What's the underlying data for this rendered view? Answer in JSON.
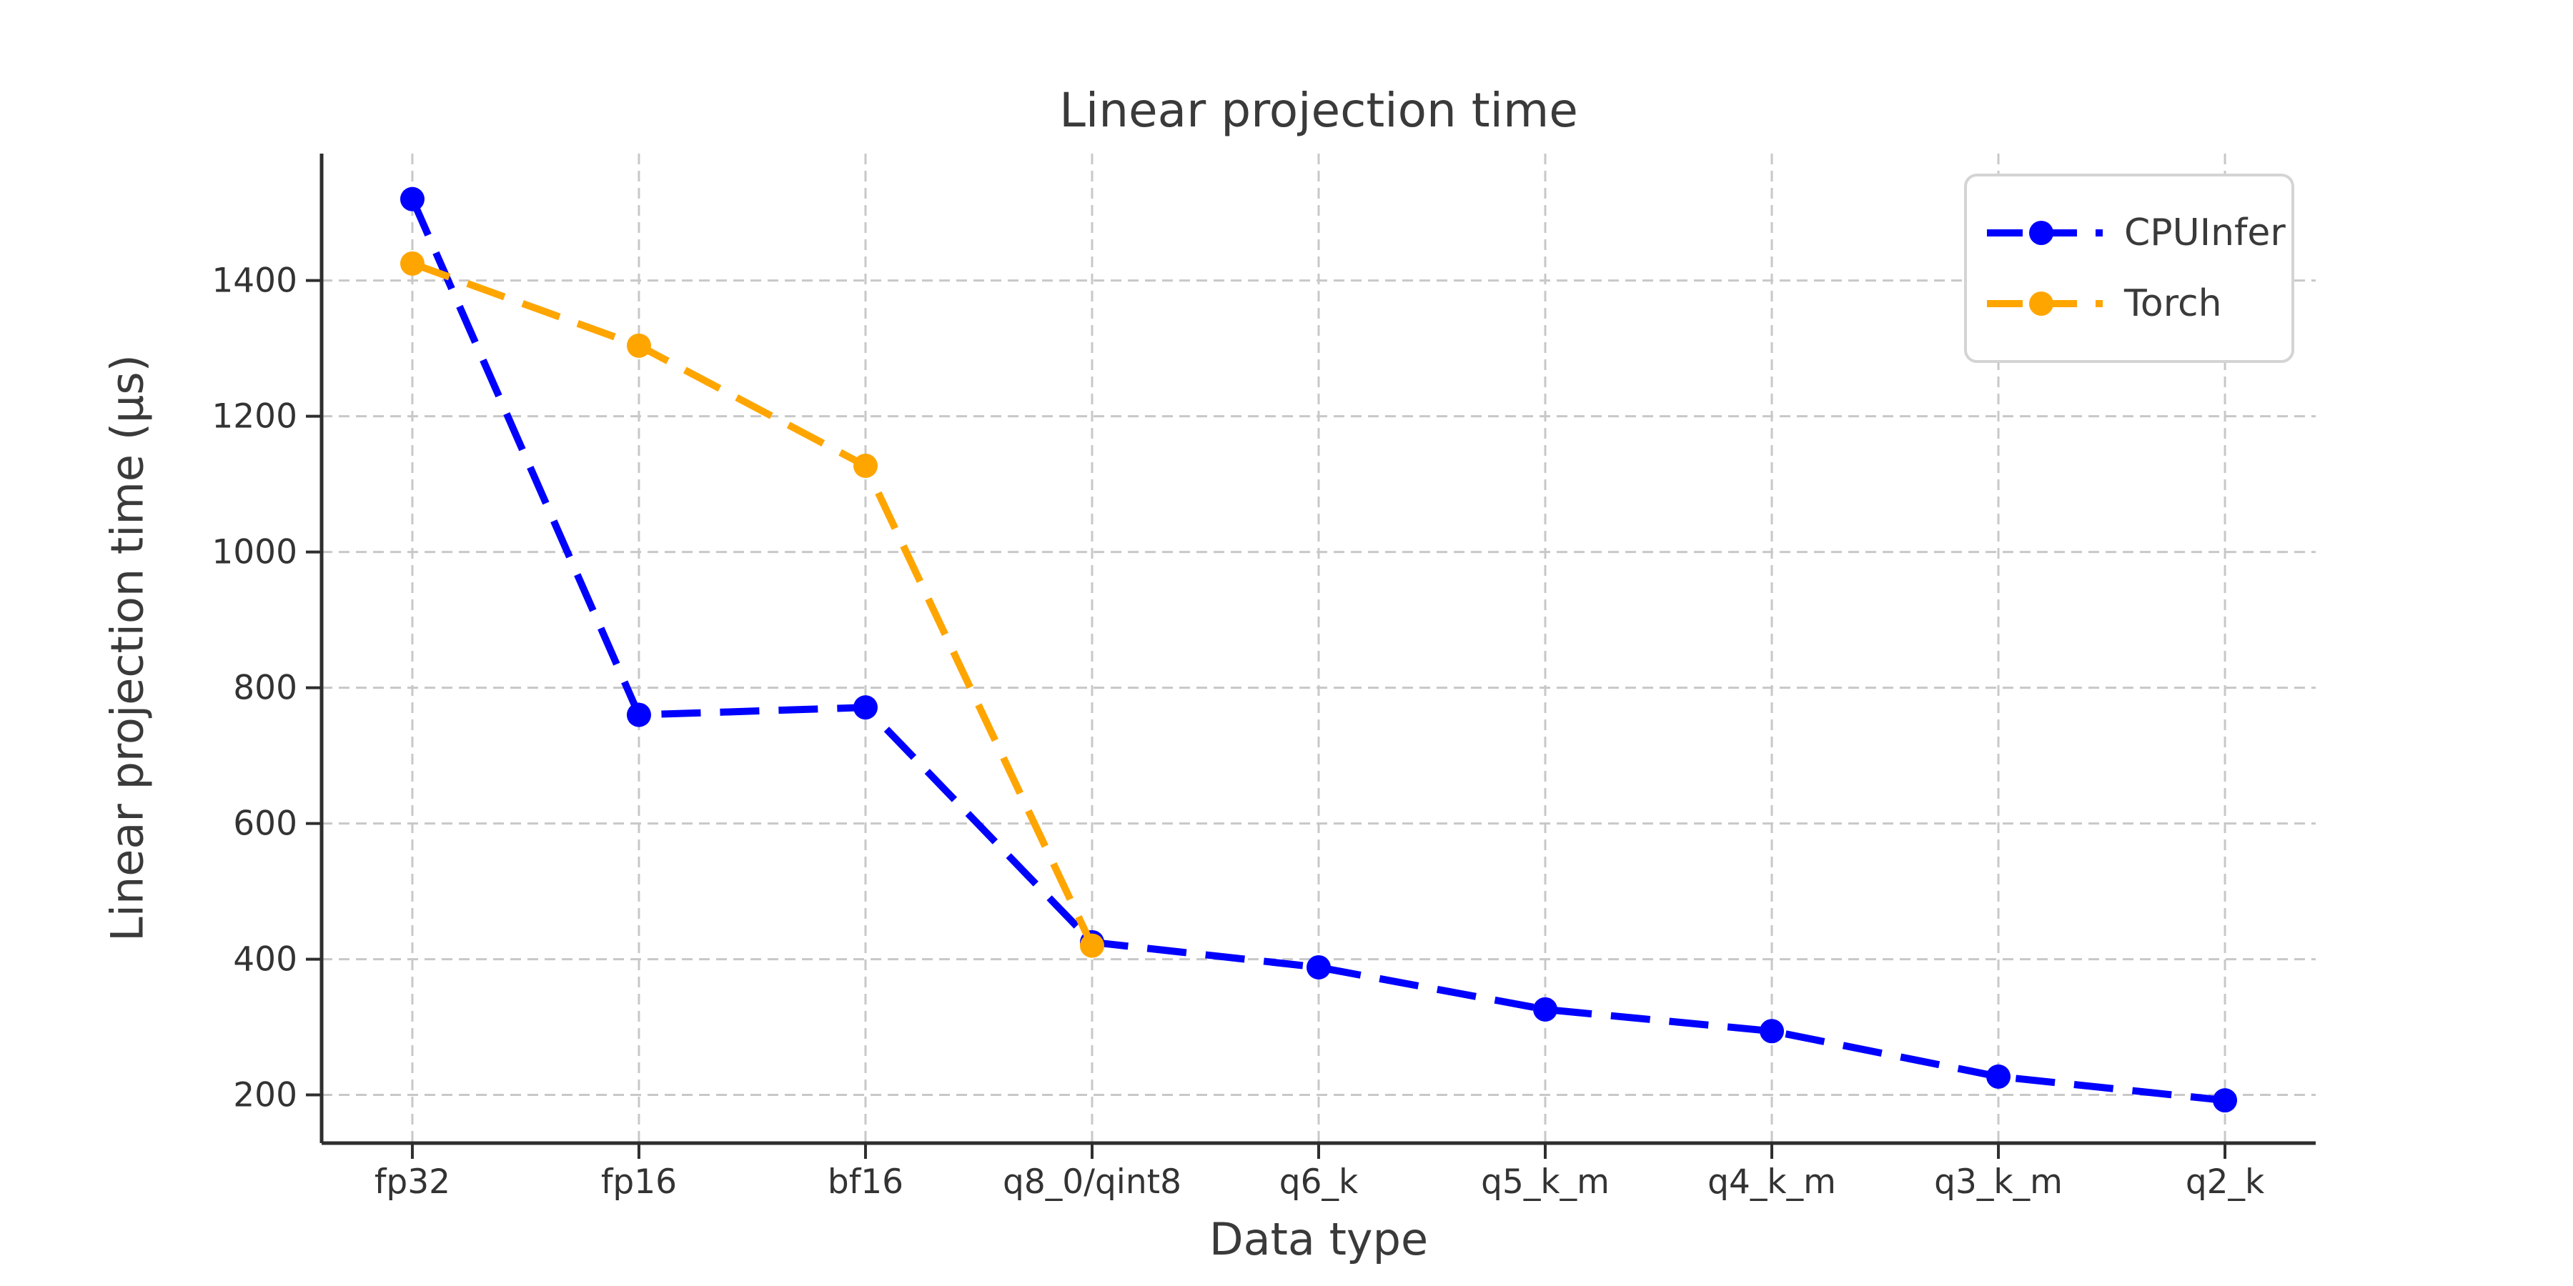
{
  "chart_data": {
    "type": "line",
    "title": "Linear projection time",
    "xlabel": "Data type",
    "ylabel": "Linear projection time (μs)",
    "categories": [
      "fp32",
      "fp16",
      "bf16",
      "q8_0/qint8",
      "q6_k",
      "q5_k_m",
      "q4_k_m",
      "q3_k_m",
      "q2_k"
    ],
    "series": [
      {
        "name": "CPUInfer",
        "color": "#0000ff",
        "values": [
          1520,
          760,
          771,
          425,
          388,
          326,
          294,
          227,
          192
        ]
      },
      {
        "name": "Torch",
        "color": "#ffa500",
        "values": [
          1425,
          1304,
          1127,
          420,
          null,
          null,
          null,
          null,
          null
        ]
      }
    ],
    "yticks": [
      200,
      400,
      600,
      800,
      1000,
      1200,
      1400
    ],
    "ylim": [
      129,
      1587
    ],
    "grid": true,
    "grid_style": "dashed",
    "line_style": "dashed",
    "marker": "circle",
    "legend_position": "upper right"
  },
  "colors": {
    "background": "#ffffff",
    "grid": "#c8c8c8",
    "axis": "#2e2e2e",
    "tick_text": "#333333",
    "title_text": "#3a3a3a",
    "legend_border": "#d4d4d4"
  }
}
